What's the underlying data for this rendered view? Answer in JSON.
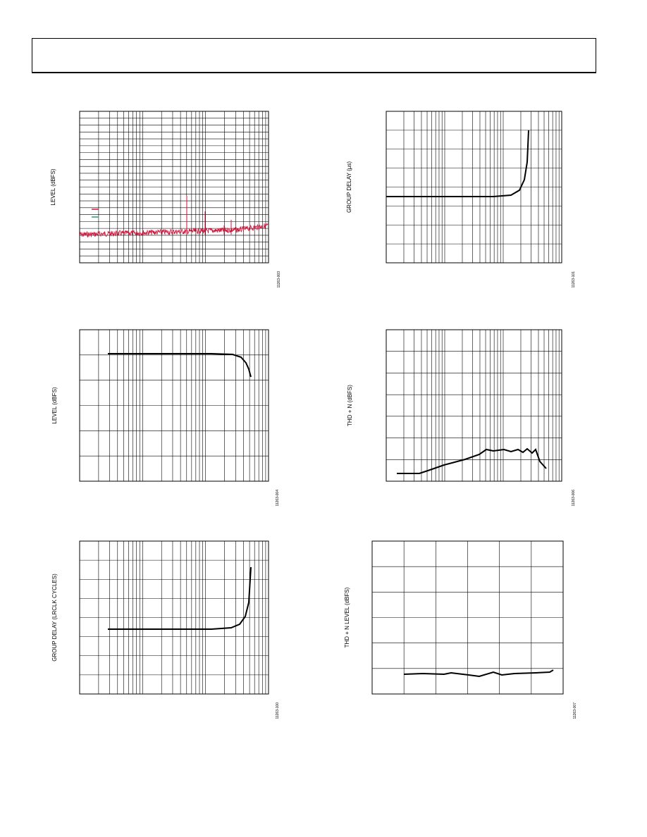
{
  "figures": [
    {
      "y_label": "LEVEL (dBFS)",
      "figure_id": "11263-003"
    },
    {
      "y_label": "GROUP DELAY (µs)",
      "figure_id": "11263-101"
    },
    {
      "y_label": "LEVEL (dBFS)",
      "figure_id": "11263-004"
    },
    {
      "y_label": "THD + N (dBFS)",
      "figure_id": "11263-006"
    },
    {
      "y_label": "GROUP DELAY (LRCLK CYCLES)",
      "figure_id": "11263-100"
    },
    {
      "y_label": "THD + N LEVEL (dBFS)",
      "figure_id": "11263-007"
    }
  ]
}
